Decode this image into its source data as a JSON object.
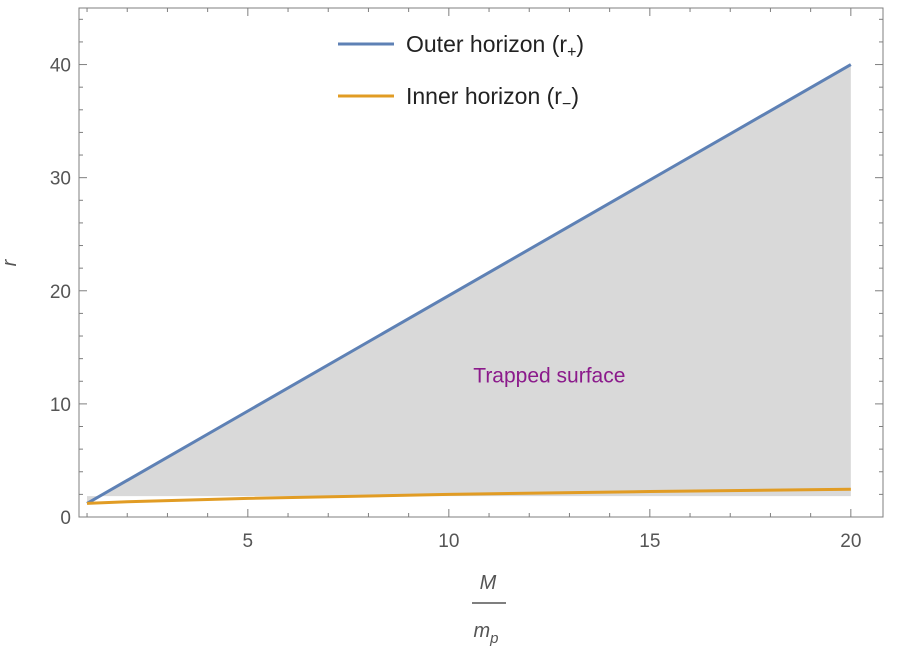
{
  "chart_data": {
    "type": "line",
    "xlabel_numerator": "M",
    "xlabel_denominator_base": "m",
    "xlabel_denominator_sub": "p",
    "ylabel": "r",
    "xlim": [
      0.8,
      20.8
    ],
    "ylim": [
      0,
      45
    ],
    "x_ticks": [
      5,
      10,
      15,
      20
    ],
    "y_ticks": [
      0,
      10,
      20,
      30,
      40
    ],
    "grid": false,
    "legend_position": "top-center",
    "series": [
      {
        "name_base": "Outer horizon (r",
        "name_sub": "+",
        "name_close": ")",
        "color": "#5e81b5",
        "x": [
          1,
          20
        ],
        "y": [
          1.2,
          40
        ]
      },
      {
        "name_base": "Inner horizon (r",
        "name_sub": "−",
        "name_close": ")",
        "color": "#e19c24",
        "x": [
          1,
          2,
          5,
          10,
          15,
          20
        ],
        "y": [
          1.2,
          1.35,
          1.65,
          2.0,
          2.25,
          2.45
        ]
      }
    ],
    "fill": {
      "color": "#d9d9d9",
      "between": "outer-and-inner",
      "baseline_y": 1.85
    },
    "annotation": {
      "text": "Trapped surface",
      "x": 12.5,
      "y": 12.5,
      "color": "#8b1a8b"
    }
  }
}
